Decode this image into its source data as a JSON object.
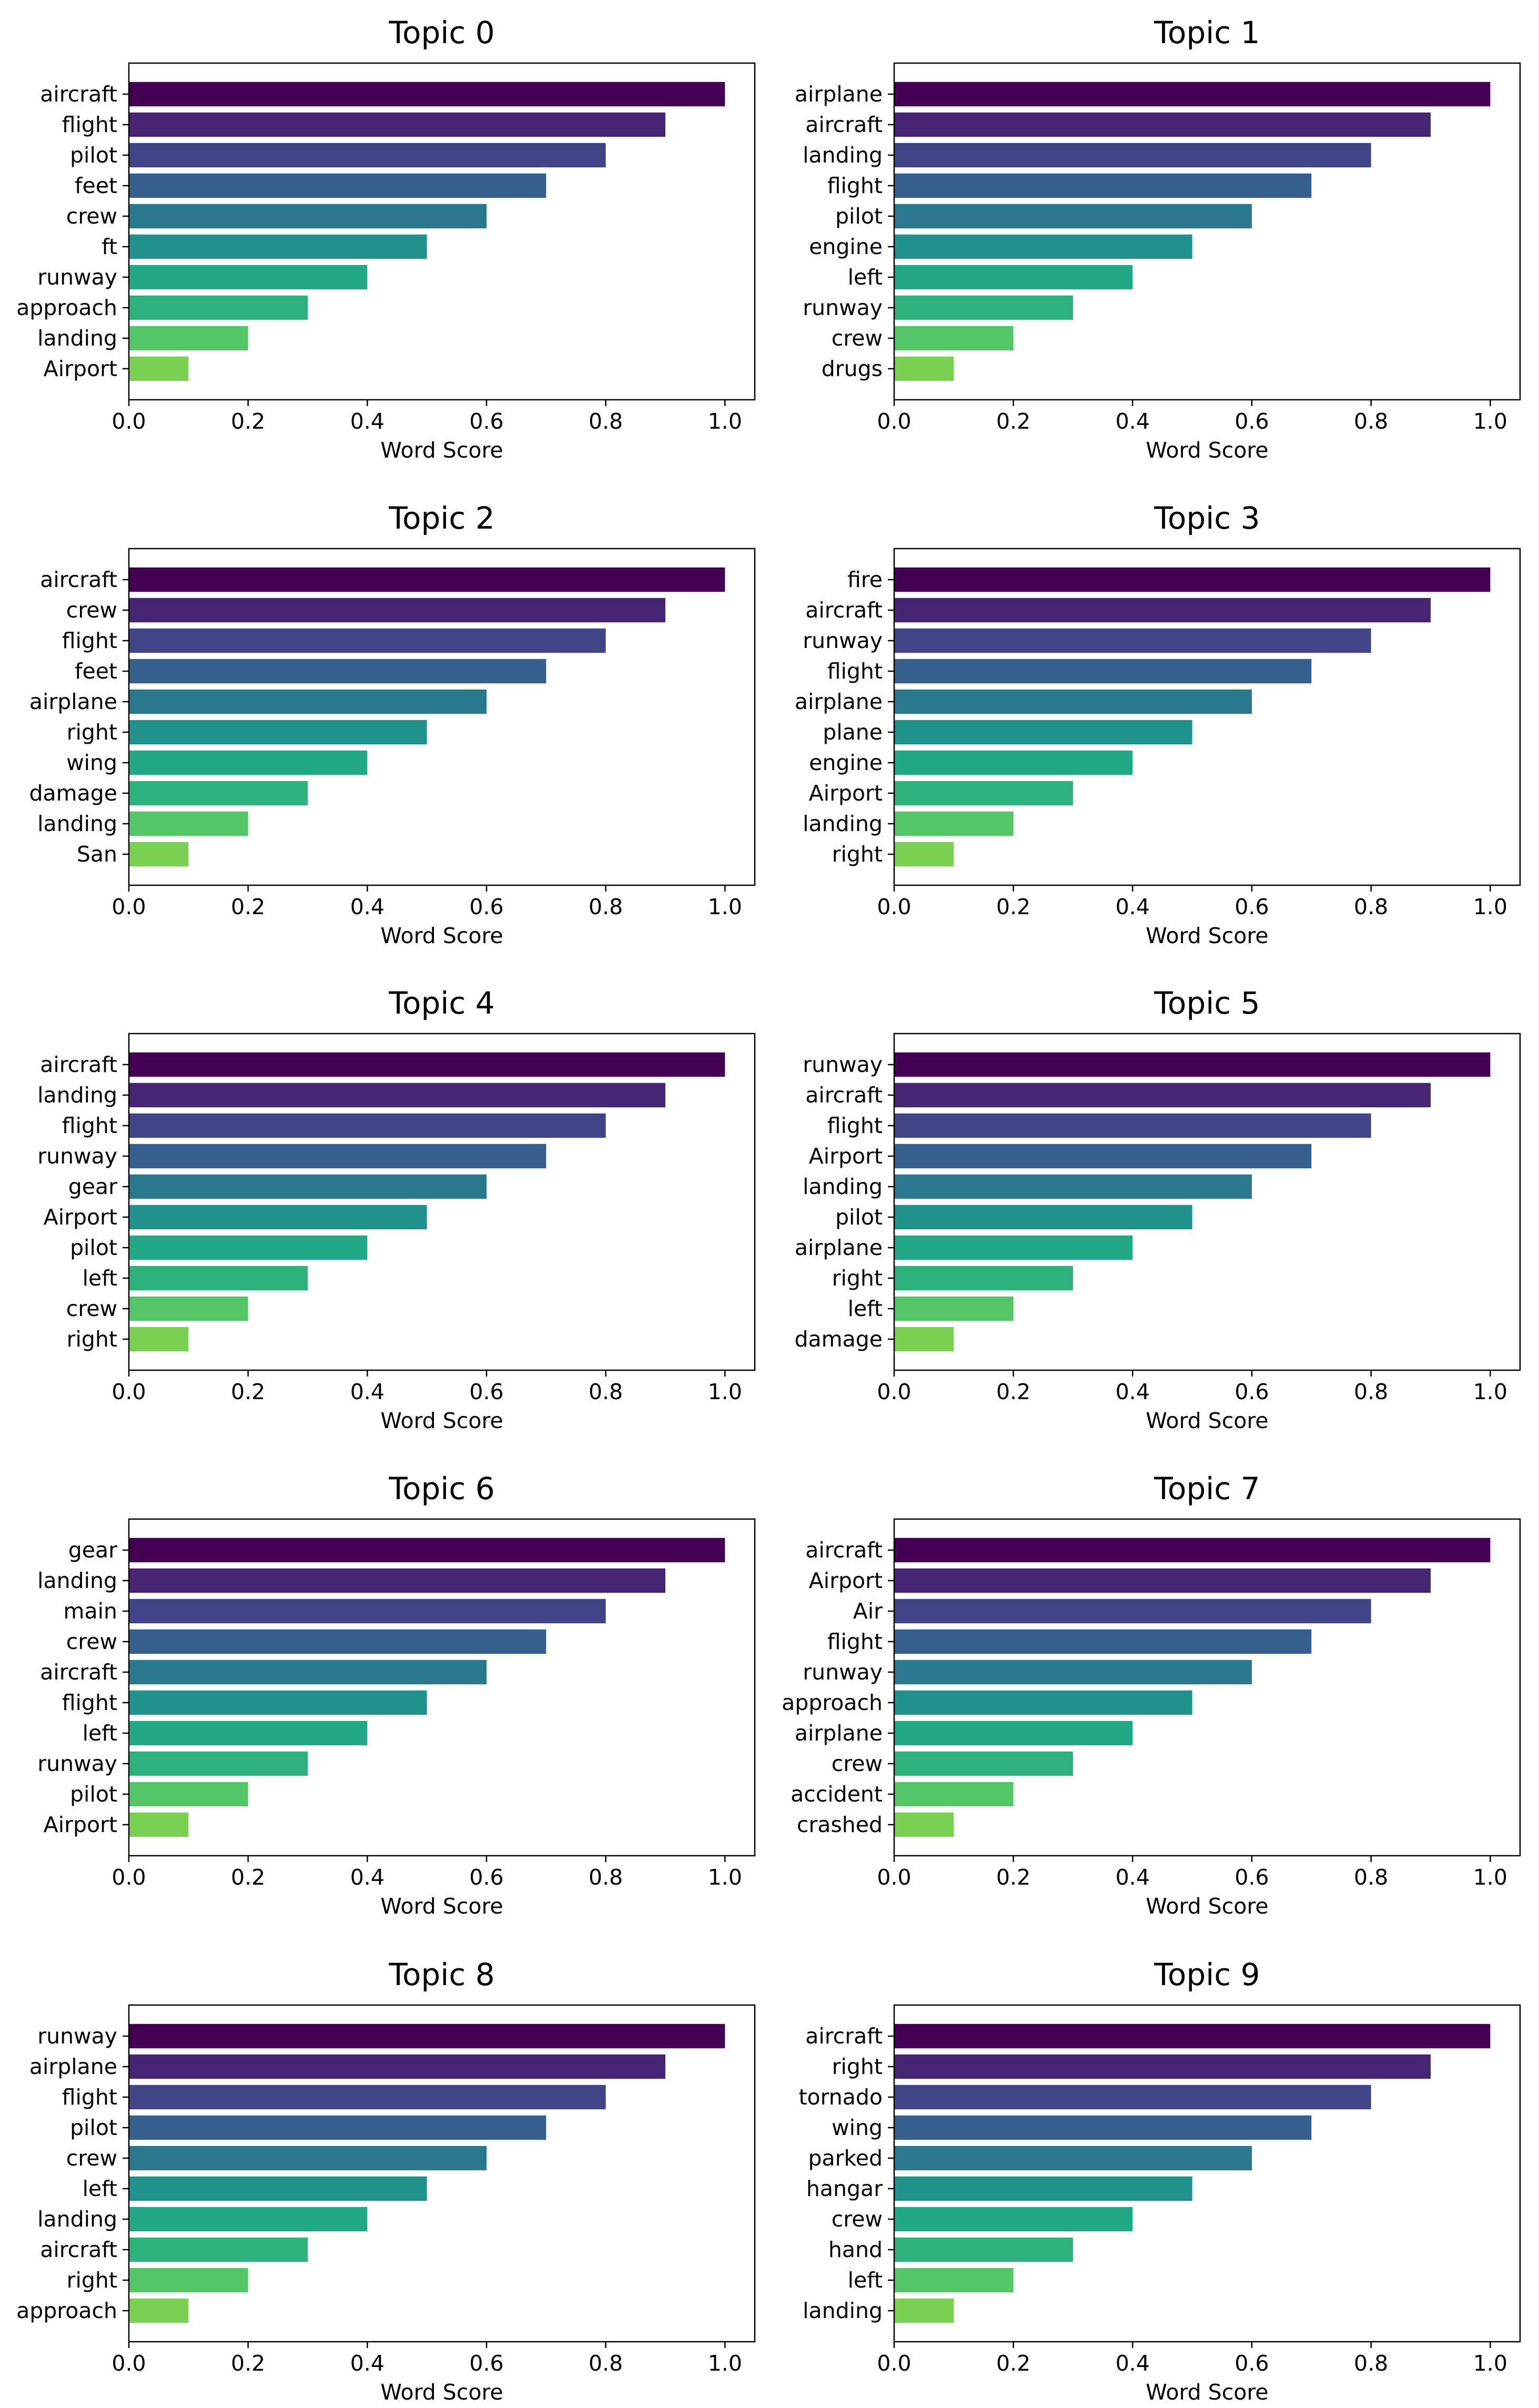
{
  "colors": [
    "#440154",
    "#482475",
    "#414487",
    "#355f8d",
    "#2a788e",
    "#21918c",
    "#22a884",
    "#44bf70",
    "#7ad151",
    "#7ad151"
  ],
  "bar_colors": [
    "#440154",
    "#482475",
    "#414487",
    "#355f8d",
    "#2a788e",
    "#21918c",
    "#22a884",
    "#2db27d",
    "#55c667",
    "#7ad151"
  ],
  "chart_data": [
    {
      "type": "bar",
      "orientation": "horizontal",
      "title": "Topic 0",
      "xlabel": "Word Score",
      "xlim": [
        0,
        1.05
      ],
      "xticks": [
        "0.0",
        "0.2",
        "0.4",
        "0.6",
        "0.8",
        "1.0"
      ],
      "categories": [
        "aircraft",
        "flight",
        "pilot",
        "feet",
        "crew",
        "ft",
        "runway",
        "approach",
        "landing",
        "Airport"
      ],
      "values": [
        1.0,
        0.9,
        0.8,
        0.7,
        0.6,
        0.5,
        0.4,
        0.3,
        0.2,
        0.1
      ]
    },
    {
      "type": "bar",
      "orientation": "horizontal",
      "title": "Topic 1",
      "xlabel": "Word Score",
      "xlim": [
        0,
        1.05
      ],
      "xticks": [
        "0.0",
        "0.2",
        "0.4",
        "0.6",
        "0.8",
        "1.0"
      ],
      "categories": [
        "airplane",
        "aircraft",
        "landing",
        "flight",
        "pilot",
        "engine",
        "left",
        "runway",
        "crew",
        "drugs"
      ],
      "values": [
        1.0,
        0.9,
        0.8,
        0.7,
        0.6,
        0.5,
        0.4,
        0.3,
        0.2,
        0.1
      ]
    },
    {
      "type": "bar",
      "orientation": "horizontal",
      "title": "Topic 2",
      "xlabel": "Word Score",
      "xlim": [
        0,
        1.05
      ],
      "xticks": [
        "0.0",
        "0.2",
        "0.4",
        "0.6",
        "0.8",
        "1.0"
      ],
      "categories": [
        "aircraft",
        "crew",
        "flight",
        "feet",
        "airplane",
        "right",
        "wing",
        "damage",
        "landing",
        "San"
      ],
      "values": [
        1.0,
        0.9,
        0.8,
        0.7,
        0.6,
        0.5,
        0.4,
        0.3,
        0.2,
        0.1
      ]
    },
    {
      "type": "bar",
      "orientation": "horizontal",
      "title": "Topic 3",
      "xlabel": "Word Score",
      "xlim": [
        0,
        1.05
      ],
      "xticks": [
        "0.0",
        "0.2",
        "0.4",
        "0.6",
        "0.8",
        "1.0"
      ],
      "categories": [
        "fire",
        "aircraft",
        "runway",
        "flight",
        "airplane",
        "plane",
        "engine",
        "Airport",
        "landing",
        "right"
      ],
      "values": [
        1.0,
        0.9,
        0.8,
        0.7,
        0.6,
        0.5,
        0.4,
        0.3,
        0.2,
        0.1
      ]
    },
    {
      "type": "bar",
      "orientation": "horizontal",
      "title": "Topic 4",
      "xlabel": "Word Score",
      "xlim": [
        0,
        1.05
      ],
      "xticks": [
        "0.0",
        "0.2",
        "0.4",
        "0.6",
        "0.8",
        "1.0"
      ],
      "categories": [
        "aircraft",
        "landing",
        "flight",
        "runway",
        "gear",
        "Airport",
        "pilot",
        "left",
        "crew",
        "right"
      ],
      "values": [
        1.0,
        0.9,
        0.8,
        0.7,
        0.6,
        0.5,
        0.4,
        0.3,
        0.2,
        0.1
      ]
    },
    {
      "type": "bar",
      "orientation": "horizontal",
      "title": "Topic 5",
      "xlabel": "Word Score",
      "xlim": [
        0,
        1.05
      ],
      "xticks": [
        "0.0",
        "0.2",
        "0.4",
        "0.6",
        "0.8",
        "1.0"
      ],
      "categories": [
        "runway",
        "aircraft",
        "flight",
        "Airport",
        "landing",
        "pilot",
        "airplane",
        "right",
        "left",
        "damage"
      ],
      "values": [
        1.0,
        0.9,
        0.8,
        0.7,
        0.6,
        0.5,
        0.4,
        0.3,
        0.2,
        0.1
      ]
    },
    {
      "type": "bar",
      "orientation": "horizontal",
      "title": "Topic 6",
      "xlabel": "Word Score",
      "xlim": [
        0,
        1.05
      ],
      "xticks": [
        "0.0",
        "0.2",
        "0.4",
        "0.6",
        "0.8",
        "1.0"
      ],
      "categories": [
        "gear",
        "landing",
        "main",
        "crew",
        "aircraft",
        "flight",
        "left",
        "runway",
        "pilot",
        "Airport"
      ],
      "values": [
        1.0,
        0.9,
        0.8,
        0.7,
        0.6,
        0.5,
        0.4,
        0.3,
        0.2,
        0.1
      ]
    },
    {
      "type": "bar",
      "orientation": "horizontal",
      "title": "Topic 7",
      "xlabel": "Word Score",
      "xlim": [
        0,
        1.05
      ],
      "xticks": [
        "0.0",
        "0.2",
        "0.4",
        "0.6",
        "0.8",
        "1.0"
      ],
      "categories": [
        "aircraft",
        "Airport",
        "Air",
        "flight",
        "runway",
        "approach",
        "airplane",
        "crew",
        "accident",
        "crashed"
      ],
      "values": [
        1.0,
        0.9,
        0.8,
        0.7,
        0.6,
        0.5,
        0.4,
        0.3,
        0.2,
        0.1
      ]
    },
    {
      "type": "bar",
      "orientation": "horizontal",
      "title": "Topic 8",
      "xlabel": "Word Score",
      "xlim": [
        0,
        1.05
      ],
      "xticks": [
        "0.0",
        "0.2",
        "0.4",
        "0.6",
        "0.8",
        "1.0"
      ],
      "categories": [
        "runway",
        "airplane",
        "flight",
        "pilot",
        "crew",
        "left",
        "landing",
        "aircraft",
        "right",
        "approach"
      ],
      "values": [
        1.0,
        0.9,
        0.8,
        0.7,
        0.6,
        0.5,
        0.4,
        0.3,
        0.2,
        0.1
      ]
    },
    {
      "type": "bar",
      "orientation": "horizontal",
      "title": "Topic 9",
      "xlabel": "Word Score",
      "xlim": [
        0,
        1.05
      ],
      "xticks": [
        "0.0",
        "0.2",
        "0.4",
        "0.6",
        "0.8",
        "1.0"
      ],
      "categories": [
        "aircraft",
        "right",
        "tornado",
        "wing",
        "parked",
        "hangar",
        "crew",
        "hand",
        "left",
        "landing"
      ],
      "values": [
        1.0,
        0.9,
        0.8,
        0.7,
        0.6,
        0.5,
        0.4,
        0.3,
        0.2,
        0.1
      ]
    }
  ]
}
